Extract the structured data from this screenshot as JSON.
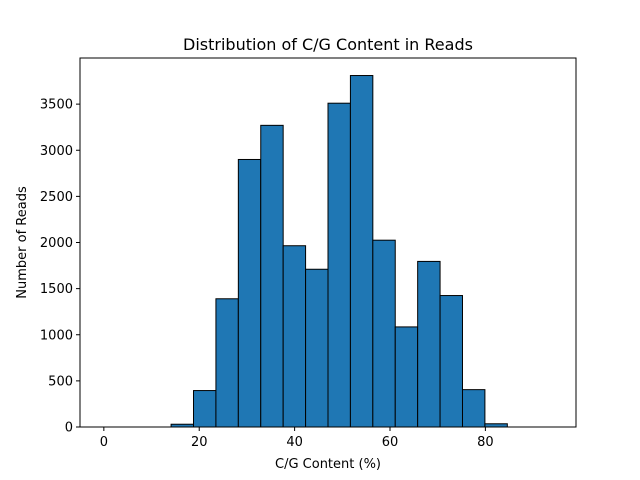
{
  "chart_data": {
    "type": "bar",
    "subtype": "histogram",
    "title": "Distribution of C/G Content in Reads",
    "xlabel": "C/G Content (%)",
    "ylabel": "Number of Reads",
    "xlim": [
      -5,
      99
    ],
    "ylim": [
      0,
      4000
    ],
    "x_ticks": [
      0,
      20,
      40,
      60,
      80
    ],
    "y_ticks": [
      0,
      500,
      1000,
      1500,
      2000,
      2500,
      3000,
      3500
    ],
    "bins": [
      {
        "start": 0.0,
        "end": 4.7,
        "value": 0
      },
      {
        "start": 4.7,
        "end": 9.4,
        "value": 0
      },
      {
        "start": 9.4,
        "end": 14.1,
        "value": 0
      },
      {
        "start": 14.1,
        "end": 18.8,
        "value": 30
      },
      {
        "start": 18.8,
        "end": 23.5,
        "value": 395
      },
      {
        "start": 23.5,
        "end": 28.2,
        "value": 1390
      },
      {
        "start": 28.2,
        "end": 32.9,
        "value": 2900
      },
      {
        "start": 32.9,
        "end": 37.6,
        "value": 3270
      },
      {
        "start": 37.6,
        "end": 42.3,
        "value": 1965
      },
      {
        "start": 42.3,
        "end": 47.0,
        "value": 1710
      },
      {
        "start": 47.0,
        "end": 51.7,
        "value": 3510
      },
      {
        "start": 51.7,
        "end": 56.4,
        "value": 3810
      },
      {
        "start": 56.4,
        "end": 61.1,
        "value": 2025
      },
      {
        "start": 61.1,
        "end": 65.8,
        "value": 1085
      },
      {
        "start": 65.8,
        "end": 70.5,
        "value": 1795
      },
      {
        "start": 70.5,
        "end": 75.2,
        "value": 1425
      },
      {
        "start": 75.2,
        "end": 79.9,
        "value": 405
      },
      {
        "start": 79.9,
        "end": 84.6,
        "value": 35
      },
      {
        "start": 84.6,
        "end": 89.3,
        "value": 0
      },
      {
        "start": 89.3,
        "end": 94.0,
        "value": 0
      }
    ],
    "grid": false,
    "colors": {
      "bar_fill": "#1f77b4",
      "bar_edge": "#000000"
    }
  }
}
